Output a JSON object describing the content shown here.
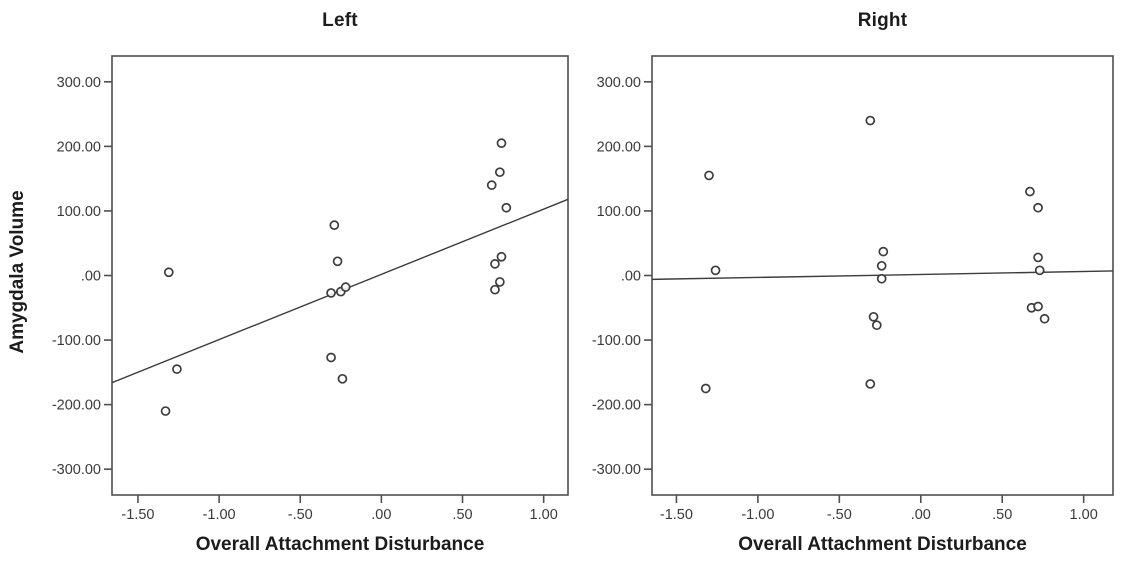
{
  "chart_data": [
    {
      "type": "scatter",
      "title": "Left",
      "xlabel": "Overall Attachment Disturbance",
      "ylabel": "Amygdala Volume",
      "xlim": [
        -1.66,
        1.15
      ],
      "ylim": [
        -340,
        340
      ],
      "grid": false,
      "legend": "none",
      "x_ticks": {
        "values": [
          -1.5,
          -1.0,
          -0.5,
          0,
          0.5,
          1.0
        ],
        "labels": [
          "-1.50",
          "-1.00",
          "-.50",
          ".00",
          ".50",
          "1.00"
        ]
      },
      "y_ticks": {
        "values": [
          300,
          200,
          100,
          0,
          -100,
          -200,
          -300
        ],
        "labels": [
          "300.00",
          "200.00",
          "100.00",
          ".00",
          "-100.00",
          "-200.00",
          "-300.00"
        ]
      },
      "points": [
        [
          -1.31,
          5
        ],
        [
          -1.26,
          -145
        ],
        [
          -1.33,
          -210
        ],
        [
          -0.29,
          78
        ],
        [
          -0.27,
          22
        ],
        [
          -0.31,
          -27
        ],
        [
          -0.25,
          -25
        ],
        [
          -0.22,
          -18
        ],
        [
          -0.31,
          -127
        ],
        [
          -0.24,
          -160
        ],
        [
          0.74,
          205
        ],
        [
          0.73,
          160
        ],
        [
          0.68,
          140
        ],
        [
          0.77,
          105
        ],
        [
          0.74,
          29
        ],
        [
          0.7,
          18
        ],
        [
          0.73,
          -10
        ],
        [
          0.7,
          -22
        ]
      ],
      "fit_line": {
        "x1": -1.66,
        "y1": -166,
        "x2": 1.15,
        "y2": 118
      }
    },
    {
      "type": "scatter",
      "title": "Right",
      "xlabel": "Overall Attachment Disturbance",
      "ylabel": "",
      "xlim": [
        -1.65,
        1.18
      ],
      "ylim": [
        -340,
        340
      ],
      "grid": false,
      "legend": "none",
      "x_ticks": {
        "values": [
          -1.5,
          -1.0,
          -0.5,
          0,
          0.5,
          1.0
        ],
        "labels": [
          "-1.50",
          "-1.00",
          "-.50",
          ".00",
          ".50",
          "1.00"
        ]
      },
      "y_ticks": {
        "values": [
          300,
          200,
          100,
          0,
          -100,
          -200,
          -300
        ],
        "labels": [
          "300.00",
          "200.00",
          "100.00",
          ".00",
          "-100.00",
          "-200.00",
          "-300.00"
        ]
      },
      "points": [
        [
          -1.3,
          155
        ],
        [
          -1.26,
          8
        ],
        [
          -1.32,
          -175
        ],
        [
          -0.31,
          240
        ],
        [
          -0.23,
          37
        ],
        [
          -0.24,
          15
        ],
        [
          -0.24,
          -5
        ],
        [
          -0.29,
          -64
        ],
        [
          -0.27,
          -77
        ],
        [
          -0.31,
          -168
        ],
        [
          0.67,
          130
        ],
        [
          0.72,
          105
        ],
        [
          0.72,
          28
        ],
        [
          0.73,
          8
        ],
        [
          0.68,
          -50
        ],
        [
          0.72,
          -48
        ],
        [
          0.76,
          -67
        ]
      ],
      "fit_line": {
        "x1": -1.65,
        "y1": -6,
        "x2": 1.18,
        "y2": 7
      }
    }
  ],
  "style": {
    "frame_color": "#4f4f4f",
    "point_stroke": "#3d3d3d",
    "point_fill": "#ffffff",
    "line_color": "#3c3c3c"
  }
}
